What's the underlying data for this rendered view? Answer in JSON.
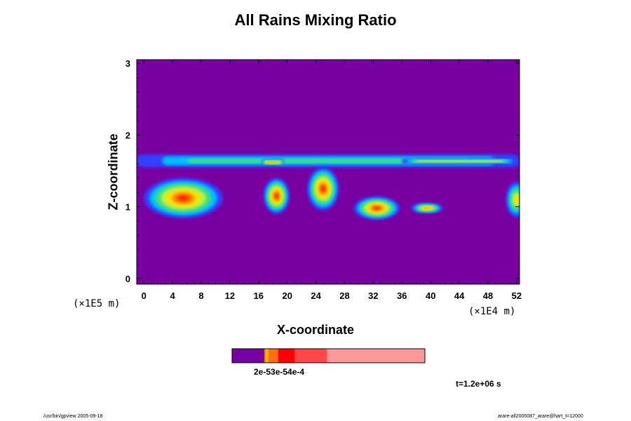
{
  "chart_data": {
    "type": "heatmap",
    "title": "All Rains Mixing Ratio",
    "xlabel": "X-coordinate",
    "ylabel": "Z-coordinate",
    "x_scale_note": "(×1E4 m)",
    "y_scale_note": "(×1E5 m)",
    "xlim": [
      -1,
      52.4
    ],
    "ylim": [
      -0.08,
      3.05
    ],
    "x_ticks": [
      "0",
      "4",
      "8",
      "12",
      "16",
      "20",
      "24",
      "28",
      "32",
      "36",
      "40",
      "44",
      "48",
      "52"
    ],
    "y_ticks": [
      "0",
      "1",
      "2",
      "3"
    ],
    "background_color": "#7800a0",
    "colorbar": {
      "label": "2e-53e-54e-4",
      "colors": [
        "#7800a0",
        "#d08000",
        "#ffb000",
        "#ff7010",
        "#ff0000",
        "#ff4848",
        "#ff9898"
      ]
    },
    "fields": [
      {
        "name": "upper-layer",
        "x0": -1,
        "x1": 52.4,
        "z0": 1.55,
        "z1": 1.73,
        "level": 2
      },
      {
        "name": "upper-core-right",
        "x0": 36,
        "x1": 52,
        "z0": 1.6,
        "z1": 1.67,
        "level": 4
      },
      {
        "name": "upper-core-left",
        "x0": 16.5,
        "x1": 19.5,
        "z0": 1.58,
        "z1": 1.66,
        "level": 5
      },
      {
        "name": "cell-1",
        "cx": 5.5,
        "cz": 1.12,
        "rx": 5.5,
        "rz": 0.28,
        "level": 6
      },
      {
        "name": "cell-2",
        "cx": 18.5,
        "cz": 1.15,
        "rx": 1.8,
        "rz": 0.25,
        "level": 6
      },
      {
        "name": "cell-3",
        "cx": 25,
        "cz": 1.25,
        "rx": 2.2,
        "rz": 0.3,
        "level": 6
      },
      {
        "name": "cell-4",
        "cx": 32.5,
        "cz": 0.98,
        "rx": 3.2,
        "rz": 0.16,
        "level": 6
      },
      {
        "name": "cell-5",
        "cx": 39.5,
        "cz": 0.98,
        "rx": 2.2,
        "rz": 0.07,
        "level": 5
      },
      {
        "name": "cell-6",
        "cx": 52,
        "cz": 1.1,
        "rx": 1.5,
        "rz": 0.25,
        "level": 4
      }
    ]
  },
  "time_label": "t=1.2e+06 s",
  "footer_left": "/usr/bin/gpview 2005-09-18",
  "footer_right": "arare-all2005087_arare@hart_t=12000"
}
